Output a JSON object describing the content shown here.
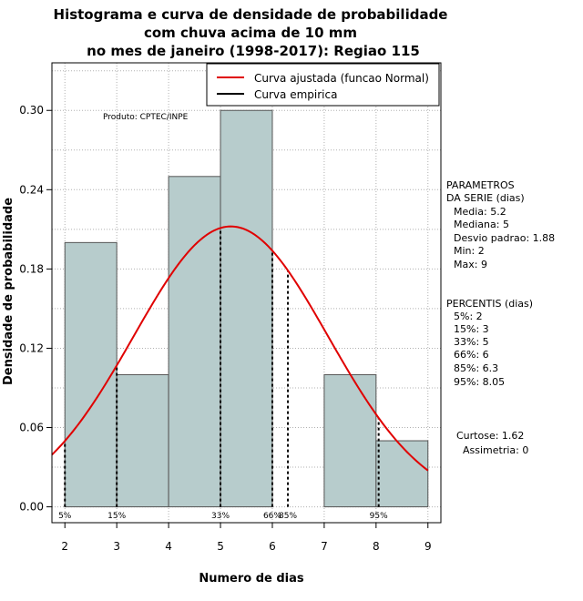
{
  "chart_data": {
    "type": "bar",
    "title": [
      "Histograma e curva de densidade de probabilidade",
      "com chuva acima de 10 mm",
      "no mes de janeiro (1998-2017): Regiao 115"
    ],
    "xlabel": "Numero de dias",
    "ylabel": "Densidade de probabilidade",
    "xlim": [
      1.75,
      9.25
    ],
    "ylim": [
      -0.012,
      0.336
    ],
    "x_ticks": [
      2,
      3,
      4,
      5,
      6,
      7,
      8,
      9
    ],
    "y_ticks": [
      "0.00",
      "0.06",
      "0.12",
      "0.18",
      "0.24",
      "0.30"
    ],
    "bins": [
      {
        "x0": 2,
        "x1": 3,
        "density": 0.2
      },
      {
        "x0": 3,
        "x1": 4,
        "density": 0.1
      },
      {
        "x0": 4,
        "x1": 5,
        "density": 0.25
      },
      {
        "x0": 5,
        "x1": 6,
        "density": 0.3
      },
      {
        "x0": 6,
        "x1": 7,
        "density": 0.0
      },
      {
        "x0": 7,
        "x1": 8,
        "density": 0.1
      },
      {
        "x0": 8,
        "x1": 9,
        "density": 0.05
      }
    ],
    "normal_fit": {
      "mean": 5.2,
      "sd": 1.88,
      "x_from": 1.75,
      "x_to": 9.0
    },
    "percentiles": [
      {
        "label": "5%",
        "x": 2
      },
      {
        "label": "15%",
        "x": 3
      },
      {
        "label": "33%",
        "x": 5
      },
      {
        "label": "66%",
        "x": 6
      },
      {
        "label": "85%",
        "x": 6.3
      },
      {
        "label": "95%",
        "x": 8.05
      }
    ],
    "legend": [
      {
        "label": "Curva ajustada (funcao Normal)",
        "color": "#e00000"
      },
      {
        "label": "Curva empirica",
        "color": "#000000"
      }
    ],
    "annotation": "Produto: CPTEC/INPE",
    "colors": {
      "bar": "#b7cccc",
      "bar_edge": "#555555",
      "curve": "#e00000",
      "grid": "#b0b0b0"
    }
  },
  "sidebar": {
    "params": [
      "PARAMETROS",
      "DA SERIE (dias)",
      "Media: 5.2",
      "Mediana: 5",
      "Desvio padrao: 1.88",
      "Min: 2",
      "Max: 9"
    ],
    "percentis": [
      "PERCENTIS (dias)",
      "5%: 2",
      "15%: 3",
      "33%: 5",
      "66%: 6",
      "85%: 6.3",
      "95%: 8.05"
    ],
    "stats": [
      "Curtose: 1.62",
      "Assimetria: 0"
    ]
  }
}
